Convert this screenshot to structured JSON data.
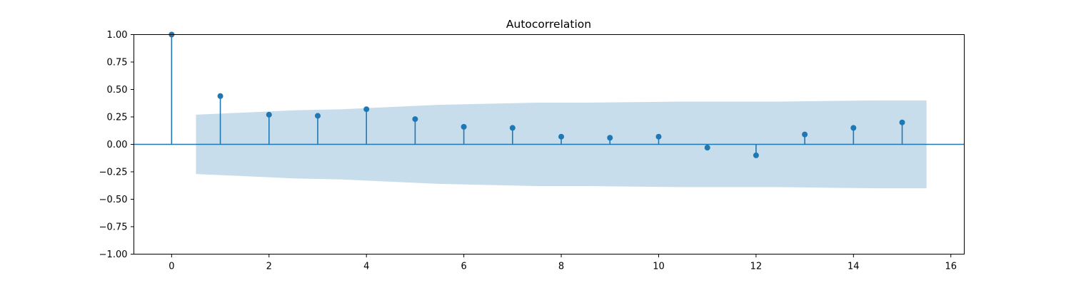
{
  "chart_data": {
    "type": "stem",
    "title": "Autocorrelation",
    "xlabel": "",
    "ylabel": "",
    "xlim": [
      -0.775,
      16.275
    ],
    "ylim": [
      -1.0,
      1.0
    ],
    "xticks": [
      0,
      2,
      4,
      6,
      8,
      10,
      12,
      14,
      16
    ],
    "xtick_labels": [
      "0",
      "2",
      "4",
      "6",
      "8",
      "10",
      "12",
      "14",
      "16"
    ],
    "yticks": [
      1.0,
      0.75,
      0.5,
      0.25,
      0.0,
      -0.25,
      -0.5,
      -0.75,
      -1.0
    ],
    "ytick_labels": [
      "1.00",
      "0.75",
      "0.50",
      "0.25",
      "0.00",
      "−0.25",
      "−0.50",
      "−0.75",
      "−1.00"
    ],
    "lags": [
      0,
      1,
      2,
      3,
      4,
      5,
      6,
      7,
      8,
      9,
      10,
      11,
      12,
      13,
      14,
      15
    ],
    "values": [
      1.0,
      0.44,
      0.27,
      0.26,
      0.32,
      0.23,
      0.16,
      0.15,
      0.07,
      0.06,
      0.07,
      -0.03,
      -0.1,
      0.09,
      0.15,
      0.2
    ],
    "confidence_band": {
      "x": [
        0.5,
        1.5,
        2.5,
        3.5,
        4.5,
        5.5,
        6.5,
        7.5,
        8.5,
        9.5,
        10.5,
        11.5,
        12.5,
        13.5,
        14.5,
        15.5
      ],
      "upper": [
        0.27,
        0.29,
        0.31,
        0.32,
        0.34,
        0.36,
        0.37,
        0.38,
        0.38,
        0.385,
        0.39,
        0.39,
        0.39,
        0.395,
        0.4,
        0.4
      ],
      "lower": [
        -0.27,
        -0.29,
        -0.31,
        -0.32,
        -0.34,
        -0.36,
        -0.37,
        -0.38,
        -0.38,
        -0.385,
        -0.39,
        -0.39,
        -0.39,
        -0.395,
        -0.4,
        -0.4
      ]
    },
    "grid": false,
    "legend": "none",
    "colors": {
      "stem": "#1f77b4",
      "band": "#1f77b4",
      "band_opacity": 0.25,
      "axes": "#000000"
    }
  }
}
